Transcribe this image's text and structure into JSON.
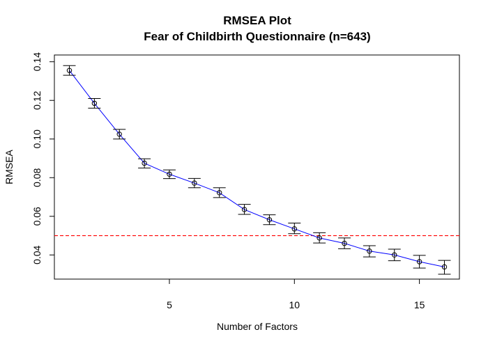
{
  "chart_data": {
    "type": "line",
    "title": "RMSEA Plot",
    "subtitle": "Fear of Childbirth Questionnaire (n=643)",
    "xlabel": "Number of Factors",
    "ylabel": "RMSEA",
    "xlim": [
      0.4,
      16.6
    ],
    "ylim": [
      0.0275,
      0.1435
    ],
    "x_ticks": [
      5,
      10,
      15
    ],
    "y_ticks": [
      0.04,
      0.06,
      0.08,
      0.1,
      0.12,
      0.14
    ],
    "y_tick_labels": [
      "0.04",
      "0.06",
      "0.08",
      "0.10",
      "0.12",
      "0.14"
    ],
    "x_tick_labels": [
      "5",
      "10",
      "15"
    ],
    "grid": false,
    "colors": {
      "line": "#0000ff",
      "points": "#000000",
      "error_bars": "#000000",
      "reference_line": "#ff0000"
    },
    "reference_line": {
      "y": 0.05,
      "style": "dashed"
    },
    "series": [
      {
        "x": [
          1,
          2,
          3,
          4,
          5,
          6,
          7,
          8,
          9,
          10,
          11,
          12,
          13,
          14,
          15,
          16
        ],
        "values": [
          0.1355,
          0.1185,
          0.1025,
          0.0875,
          0.0818,
          0.0772,
          0.0722,
          0.0635,
          0.0582,
          0.0535,
          0.0488,
          0.046,
          0.042,
          0.04,
          0.0365,
          0.0338
        ],
        "lower": [
          0.133,
          0.116,
          0.1,
          0.085,
          0.0795,
          0.0748,
          0.0697,
          0.061,
          0.0557,
          0.051,
          0.0462,
          0.0432,
          0.039,
          0.037,
          0.0332,
          0.03
        ],
        "upper": [
          0.138,
          0.121,
          0.105,
          0.0898,
          0.084,
          0.0796,
          0.0748,
          0.0662,
          0.0608,
          0.0565,
          0.0515,
          0.0488,
          0.0448,
          0.043,
          0.0398,
          0.0372
        ]
      }
    ]
  }
}
